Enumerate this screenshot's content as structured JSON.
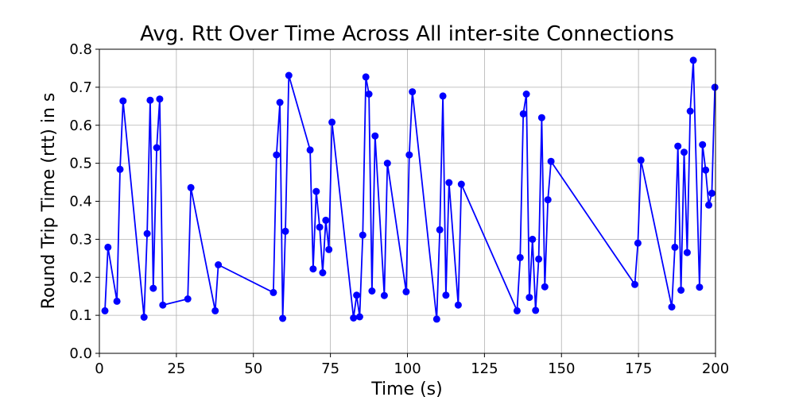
{
  "chart_data": {
    "type": "line",
    "title": "Avg. Rtt Over Time Across All inter-site Connections",
    "xlabel": "Time (s)",
    "ylabel": "Round Trip Time (rtt) in s",
    "xlim": [
      0,
      200
    ],
    "ylim": [
      0.0,
      0.8
    ],
    "xticks": [
      0,
      25,
      50,
      75,
      100,
      125,
      150,
      175,
      200
    ],
    "xtick_labels": [
      "0",
      "25",
      "50",
      "75",
      "100",
      "125",
      "150",
      "175",
      "200"
    ],
    "yticks": [
      0.0,
      0.1,
      0.2,
      0.3,
      0.4,
      0.5,
      0.6,
      0.7,
      0.8
    ],
    "ytick_labels": [
      "0.0",
      "0.1",
      "0.2",
      "0.3",
      "0.4",
      "0.5",
      "0.6",
      "0.7",
      "0.8"
    ],
    "grid": true,
    "legend": "none",
    "series": [
      {
        "color": "#0000ff",
        "marker": "circle",
        "x": [
          1.8,
          2.8,
          5.7,
          6.7,
          7.7,
          14.5,
          15.5,
          16.5,
          17.5,
          18.6,
          19.6,
          20.6,
          28.7,
          29.7,
          37.6,
          38.6,
          56.5,
          57.5,
          58.6,
          59.5,
          60.4,
          61.5,
          68.4,
          69.4,
          70.4,
          71.5,
          72.5,
          73.5,
          74.5,
          75.5,
          82.5,
          83.5,
          84.5,
          85.5,
          86.5,
          87.5,
          88.5,
          89.5,
          92.5,
          93.5,
          99.6,
          100.6,
          101.6,
          109.5,
          110.5,
          111.5,
          112.5,
          113.5,
          116.5,
          117.5,
          135.6,
          136.6,
          137.6,
          138.6,
          139.6,
          140.6,
          141.6,
          142.6,
          143.6,
          144.6,
          145.6,
          146.6,
          173.8,
          174.8,
          175.8,
          185.8,
          186.8,
          187.8,
          188.8,
          189.8,
          190.8,
          191.8,
          192.8,
          194.8,
          195.8,
          196.8,
          197.8,
          198.8,
          199.8
        ],
        "y": [
          0.112,
          0.279,
          0.137,
          0.484,
          0.664,
          0.095,
          0.315,
          0.666,
          0.171,
          0.541,
          0.669,
          0.127,
          0.143,
          0.436,
          0.112,
          0.233,
          0.16,
          0.522,
          0.66,
          0.092,
          0.321,
          0.731,
          0.535,
          0.222,
          0.426,
          0.332,
          0.212,
          0.35,
          0.273,
          0.608,
          0.093,
          0.153,
          0.096,
          0.311,
          0.727,
          0.682,
          0.164,
          0.572,
          0.152,
          0.5,
          0.162,
          0.522,
          0.688,
          0.09,
          0.325,
          0.677,
          0.153,
          0.449,
          0.127,
          0.445,
          0.112,
          0.252,
          0.63,
          0.682,
          0.147,
          0.3,
          0.113,
          0.248,
          0.62,
          0.175,
          0.404,
          0.505,
          0.181,
          0.29,
          0.508,
          0.122,
          0.279,
          0.545,
          0.166,
          0.529,
          0.265,
          0.637,
          0.771,
          0.174,
          0.549,
          0.482,
          0.39,
          0.421,
          0.7
        ]
      }
    ]
  }
}
